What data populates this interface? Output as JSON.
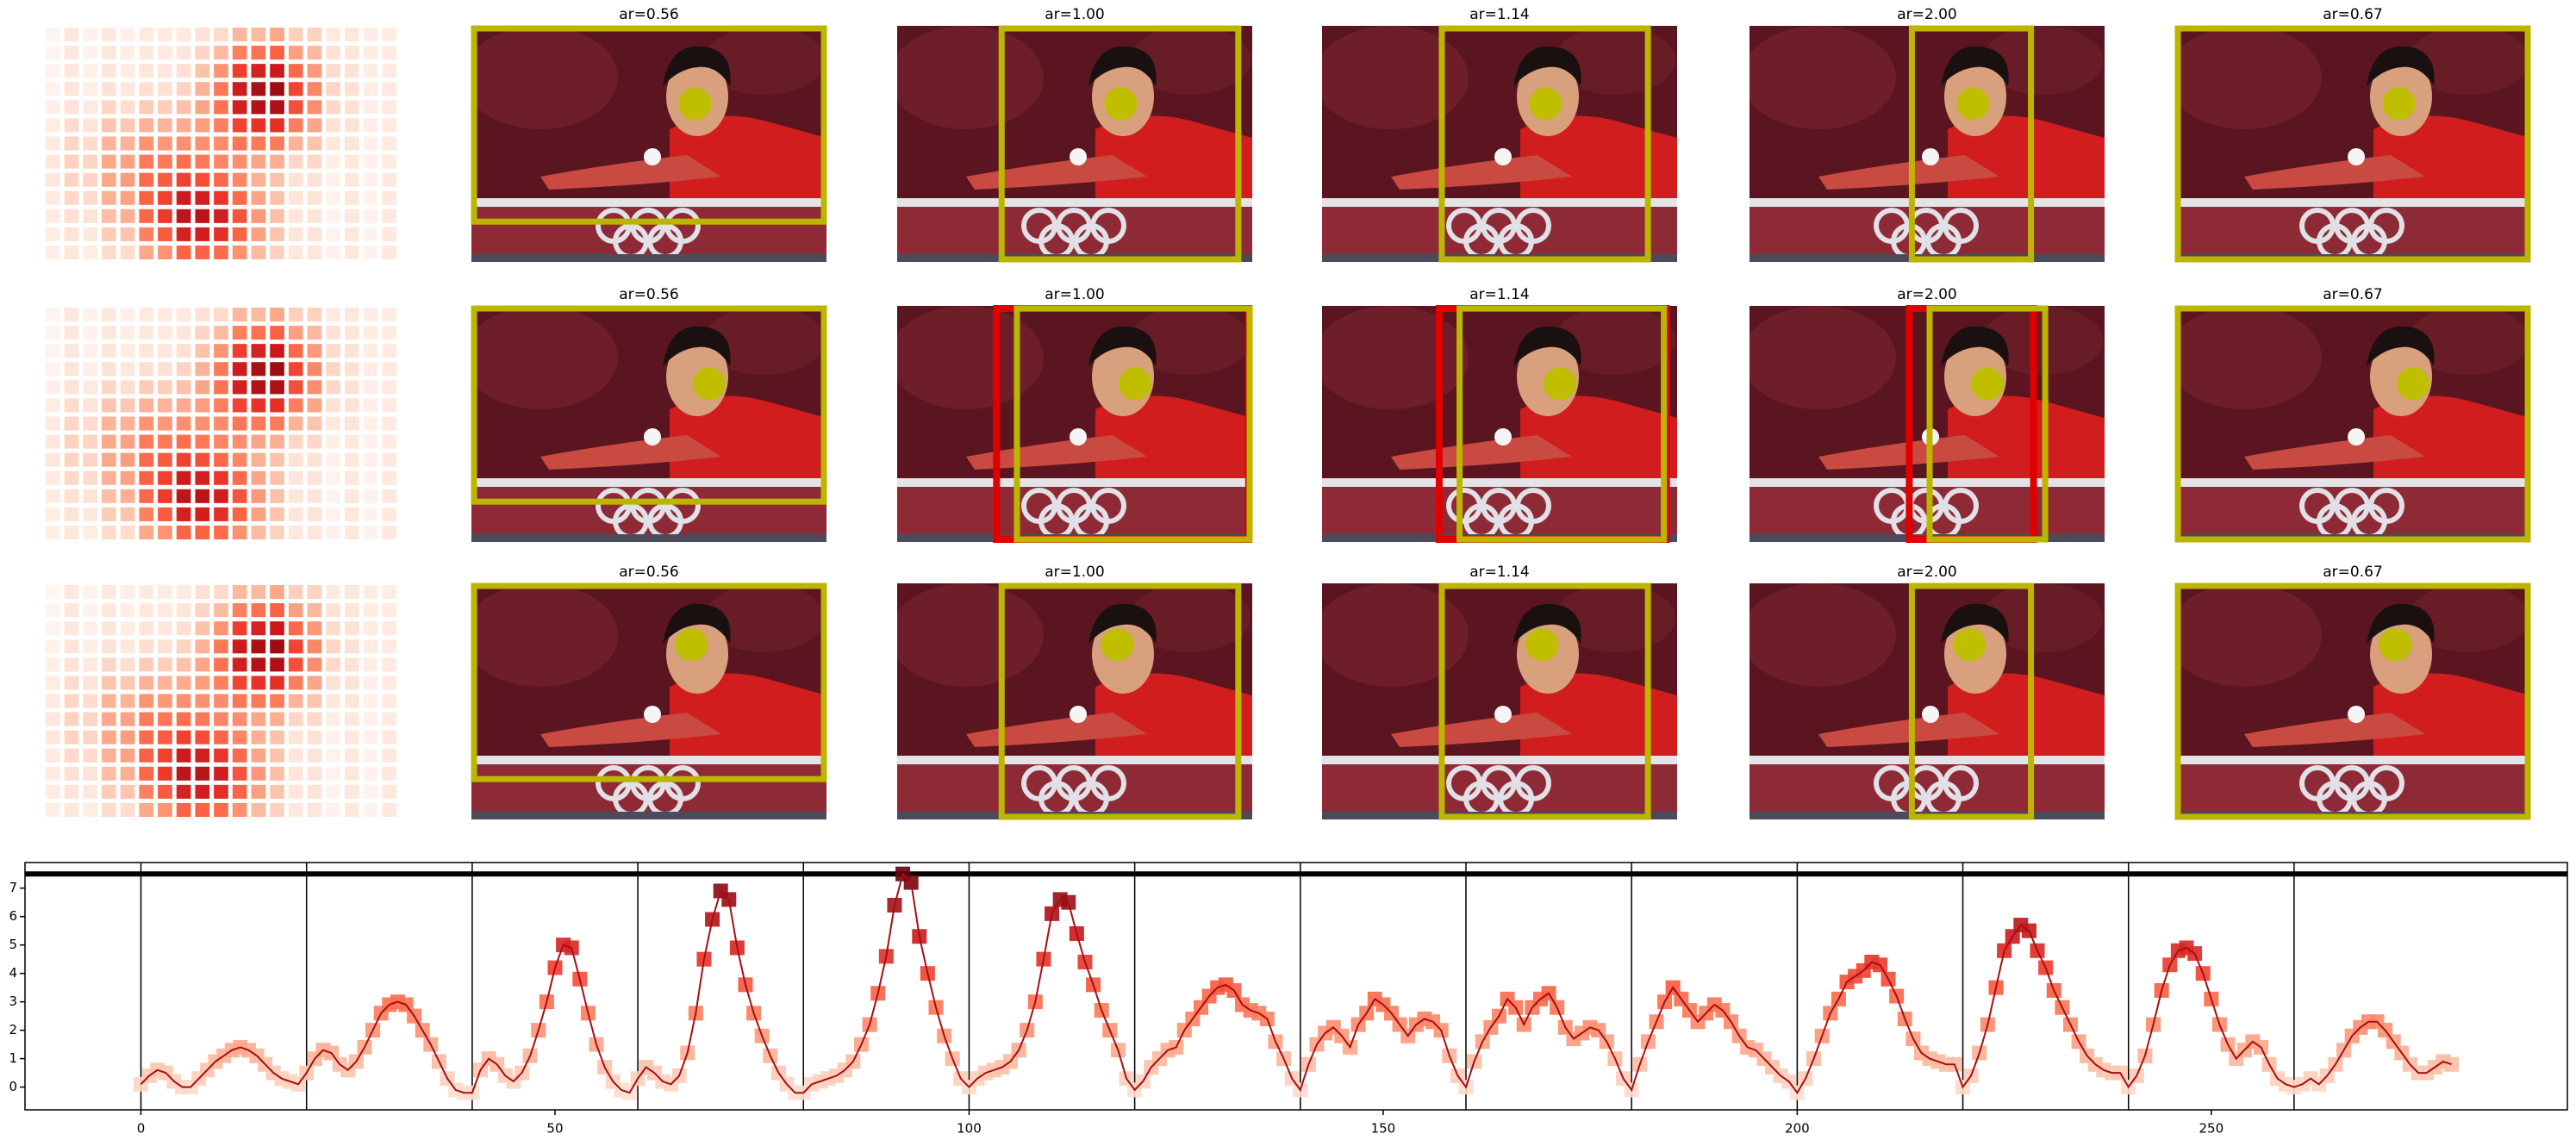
{
  "panels": {
    "rows": [
      [
        "ar=0.56",
        "ar=1.00",
        "ar=1.14",
        "ar=2.00",
        "ar=0.67"
      ],
      [
        "ar=0.56",
        "ar=1.00",
        "ar=1.14",
        "ar=2.00",
        "ar=0.67"
      ],
      [
        "ar=0.56",
        "ar=1.00",
        "ar=1.14",
        "ar=2.00",
        "ar=0.67"
      ]
    ]
  },
  "chart_data": {
    "type": "line",
    "values": [
      0.1,
      0.4,
      0.6,
      0.5,
      0.2,
      0.0,
      0.0,
      0.3,
      0.6,
      0.9,
      1.1,
      1.3,
      1.4,
      1.3,
      1.1,
      0.8,
      0.5,
      0.3,
      0.2,
      0.1,
      0.5,
      1.0,
      1.3,
      1.2,
      0.8,
      0.6,
      0.9,
      1.4,
      2.0,
      2.6,
      2.9,
      3.0,
      2.9,
      2.5,
      2.0,
      1.5,
      0.9,
      0.3,
      -0.1,
      -0.2,
      -0.2,
      0.6,
      1.0,
      0.8,
      0.4,
      0.2,
      0.5,
      1.1,
      2.0,
      3.0,
      4.2,
      5.0,
      4.9,
      3.8,
      2.6,
      1.5,
      0.7,
      0.2,
      -0.1,
      -0.2,
      0.3,
      0.7,
      0.5,
      0.2,
      0.1,
      0.4,
      1.2,
      2.6,
      4.5,
      5.9,
      6.9,
      6.6,
      4.9,
      3.6,
      2.6,
      1.8,
      1.1,
      0.5,
      0.1,
      -0.2,
      -0.2,
      0.1,
      0.2,
      0.3,
      0.4,
      0.6,
      0.9,
      1.5,
      2.2,
      3.3,
      4.6,
      6.4,
      7.5,
      7.2,
      5.3,
      4.0,
      2.8,
      1.8,
      1.0,
      0.3,
      0.0,
      0.3,
      0.5,
      0.6,
      0.7,
      0.9,
      1.3,
      2.0,
      3.0,
      4.5,
      6.1,
      6.6,
      6.5,
      5.4,
      4.4,
      3.6,
      2.7,
      2.0,
      1.3,
      0.3,
      -0.1,
      0.2,
      0.7,
      1.0,
      1.3,
      1.4,
      2.0,
      2.4,
      2.8,
      3.2,
      3.5,
      3.6,
      3.4,
      2.9,
      2.7,
      2.6,
      2.4,
      1.6,
      1.0,
      0.3,
      -0.1,
      0.8,
      1.5,
      1.9,
      2.1,
      1.8,
      1.4,
      2.2,
      2.6,
      3.1,
      2.9,
      2.6,
      2.2,
      1.8,
      2.2,
      2.4,
      2.3,
      2.0,
      1.1,
      0.4,
      0.0,
      0.9,
      1.6,
      2.1,
      2.5,
      3.1,
      2.8,
      2.2,
      2.8,
      3.1,
      3.3,
      2.8,
      2.1,
      1.7,
      1.9,
      2.1,
      2.0,
      1.6,
      1.0,
      0.3,
      -0.1,
      0.8,
      1.6,
      2.3,
      3.0,
      3.5,
      3.1,
      2.7,
      2.3,
      2.6,
      2.9,
      2.7,
      2.3,
      1.8,
      1.4,
      1.3,
      1.0,
      0.7,
      0.4,
      0.2,
      -0.2,
      0.3,
      1.0,
      1.8,
      2.6,
      3.1,
      3.7,
      3.9,
      4.1,
      4.4,
      4.3,
      3.8,
      3.2,
      2.4,
      1.7,
      1.2,
      1.0,
      0.9,
      0.8,
      0.8,
      0.0,
      0.4,
      1.2,
      2.2,
      3.5,
      4.8,
      5.3,
      5.7,
      5.5,
      4.8,
      4.2,
      3.4,
      2.8,
      2.2,
      1.6,
      1.1,
      0.8,
      0.6,
      0.5,
      0.5,
      0.0,
      0.4,
      1.1,
      2.2,
      3.4,
      4.3,
      4.8,
      4.9,
      4.7,
      4.0,
      3.1,
      2.2,
      1.5,
      1.0,
      1.3,
      1.6,
      1.4,
      0.8,
      0.3,
      0.1,
      0.0,
      0.1,
      0.3,
      0.1,
      0.4,
      0.8,
      1.3,
      1.8,
      2.1,
      2.3,
      2.3,
      2.0,
      1.6,
      1.2,
      0.8,
      0.5,
      0.5,
      0.7,
      0.9,
      0.8
    ],
    "color": "#a50f15",
    "colormap": "Reds",
    "clim": [
      0,
      7.5
    ],
    "xlim": [
      -14,
      293
    ],
    "ylim": [
      -0.8,
      7.9
    ],
    "xticks": [
      0,
      50,
      100,
      150,
      200,
      250
    ],
    "yticks": [
      0,
      1,
      2,
      3,
      4,
      5,
      6,
      7
    ],
    "vlines": [
      0,
      20,
      40,
      60,
      80,
      100,
      120,
      140,
      160,
      180,
      200,
      220,
      240,
      260
    ],
    "hline": 7.5
  }
}
